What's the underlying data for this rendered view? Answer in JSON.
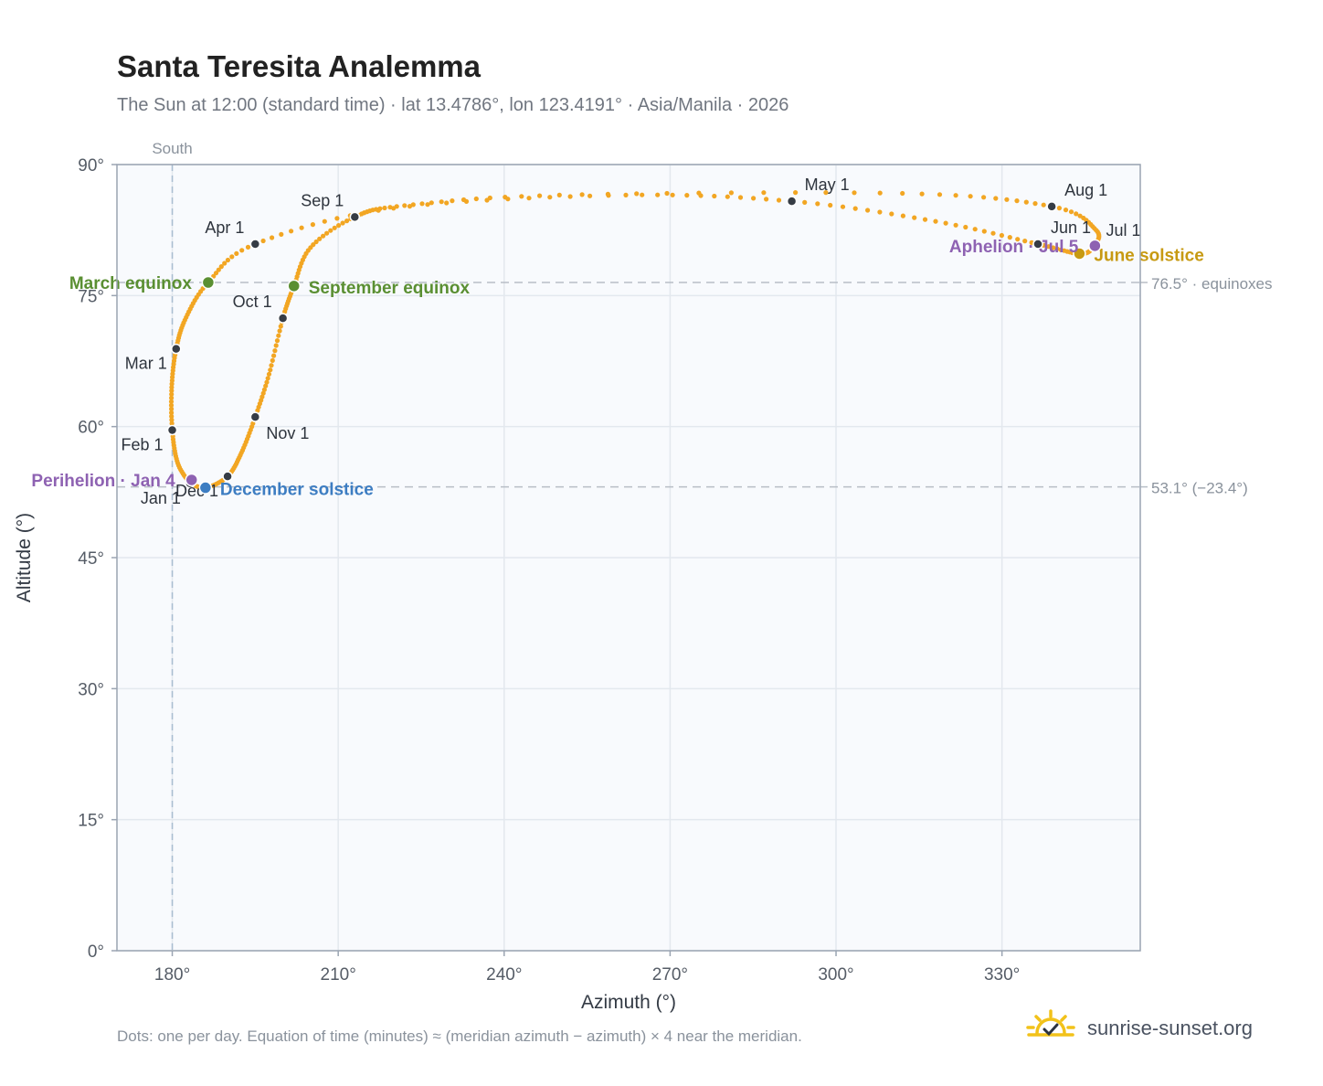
{
  "title": "Santa Teresita Analemma",
  "subtitle": "The Sun at 12:00 (standard time) · lat 13.4786°, lon 123.4191° · Asia/Manila · 2026",
  "footnote": "Dots: one per day. Equation of time (minutes) ≈ (meridian azimuth − azimuth) × 4 near the meridian.",
  "brand": {
    "name": "sunrise-sunset.org",
    "icon": "sun-check-icon"
  },
  "colors": {
    "path": "#f2a623",
    "month_marker": "#363c45",
    "equinox": "#5a8f32",
    "december_solstice": "#3d7dc2",
    "june_solstice": "#c79a12",
    "apsis": "#8e62b2",
    "grid": "#e3e8ee",
    "plot_bg": "#f8fafd",
    "frame": "#9aa4b2"
  },
  "chart_data": {
    "type": "scatter",
    "title": "Santa Teresita Analemma",
    "xlabel": "Azimuth (°)",
    "ylabel": "Altitude (°)",
    "xlim": [
      170,
      355
    ],
    "ylim": [
      0,
      90
    ],
    "x_ticks": [
      180,
      210,
      240,
      270,
      300,
      330
    ],
    "x_tick_labels": [
      "180°",
      "210°",
      "240°",
      "270°",
      "300°",
      "330°"
    ],
    "y_ticks": [
      0,
      15,
      30,
      45,
      60,
      75,
      90
    ],
    "y_tick_labels": [
      "0°",
      "15°",
      "30°",
      "45°",
      "60°",
      "75°",
      "90°"
    ],
    "grid": true,
    "meridian": {
      "azimuth": 180,
      "label": "South"
    },
    "reference_lines": [
      {
        "altitude": 76.5,
        "label": "76.5° · equinoxes"
      },
      {
        "altitude": 53.1,
        "label": "53.1° (−23.4°)"
      }
    ],
    "path_waypoints": [
      {
        "date": "Jan 1",
        "az": 183.2,
        "alt": 53.5
      },
      {
        "date": "Jan 15",
        "az": 181.0,
        "alt": 55.8
      },
      {
        "date": "Feb 1",
        "az": 180.0,
        "alt": 59.6
      },
      {
        "date": "Feb 15",
        "az": 179.9,
        "alt": 64.5
      },
      {
        "date": "Mar 1",
        "az": 180.7,
        "alt": 68.9
      },
      {
        "date": "Mar 10",
        "az": 182.5,
        "alt": 72.5
      },
      {
        "date": "Mar 20",
        "az": 186.5,
        "alt": 76.5
      },
      {
        "date": "Apr 1",
        "az": 195.0,
        "alt": 80.9
      },
      {
        "date": "Apr 15",
        "az": 220.0,
        "alt": 85.0
      },
      {
        "date": "Apr 25",
        "az": 262.0,
        "alt": 86.5
      },
      {
        "date": "May 1",
        "az": 292.0,
        "alt": 85.8
      },
      {
        "date": "May 15",
        "az": 318.0,
        "alt": 83.5
      },
      {
        "date": "Jun 1",
        "az": 336.5,
        "alt": 80.9
      },
      {
        "date": "Jun 21",
        "az": 344.0,
        "alt": 79.8
      },
      {
        "date": "Jul 1",
        "az": 346.5,
        "alt": 80.6
      },
      {
        "date": "Jul 15",
        "az": 347.0,
        "alt": 82.5
      },
      {
        "date": "Aug 1",
        "az": 339.0,
        "alt": 85.2
      },
      {
        "date": "Aug 10",
        "az": 312.0,
        "alt": 86.7
      },
      {
        "date": "Aug 20",
        "az": 250.0,
        "alt": 86.5
      },
      {
        "date": "Aug 28",
        "az": 222.0,
        "alt": 85.3
      },
      {
        "date": "Sep 1",
        "az": 213.0,
        "alt": 84.0
      },
      {
        "date": "Sep 10",
        "az": 205.0,
        "alt": 80.5
      },
      {
        "date": "Sep 22",
        "az": 202.0,
        "alt": 76.1
      },
      {
        "date": "Oct 1",
        "az": 200.0,
        "alt": 72.4
      },
      {
        "date": "Oct 15",
        "az": 197.5,
        "alt": 66.0
      },
      {
        "date": "Nov 1",
        "az": 195.0,
        "alt": 61.1
      },
      {
        "date": "Nov 15",
        "az": 192.5,
        "alt": 57.0
      },
      {
        "date": "Dec 1",
        "az": 190.0,
        "alt": 54.3
      },
      {
        "date": "Dec 21",
        "az": 186.0,
        "alt": 53.0
      },
      {
        "date": "Dec 31",
        "az": 183.3,
        "alt": 53.5
      }
    ],
    "month_markers": [
      {
        "label": "Jan 1",
        "az": 183.2,
        "alt": 53.5,
        "pos": "below-left"
      },
      {
        "label": "Feb 1",
        "az": 180.0,
        "alt": 59.6,
        "pos": "below-left"
      },
      {
        "label": "Mar 1",
        "az": 180.7,
        "alt": 68.9,
        "pos": "below-left"
      },
      {
        "label": "Apr 1",
        "az": 195.0,
        "alt": 80.9,
        "pos": "above-left"
      },
      {
        "label": "May 1",
        "az": 292.0,
        "alt": 85.8,
        "pos": "above-right"
      },
      {
        "label": "Jun 1",
        "az": 336.5,
        "alt": 80.9,
        "pos": "above-right"
      },
      {
        "label": "Jul 1",
        "az": 346.5,
        "alt": 80.6,
        "pos": "above-right"
      },
      {
        "label": "Aug 1",
        "az": 339.0,
        "alt": 85.2,
        "pos": "above-right"
      },
      {
        "label": "Sep 1",
        "az": 213.0,
        "alt": 84.0,
        "pos": "above-left"
      },
      {
        "label": "Oct 1",
        "az": 200.0,
        "alt": 72.4,
        "pos": "above-left"
      },
      {
        "label": "Nov 1",
        "az": 195.0,
        "alt": 61.1,
        "pos": "below-right"
      },
      {
        "label": "Dec 1",
        "az": 190.0,
        "alt": 54.3,
        "pos": "below-left"
      }
    ],
    "events": [
      {
        "label": "March equinox",
        "az": 186.5,
        "alt": 76.5,
        "color": "#5a8f32",
        "pos": "left"
      },
      {
        "label": "September equinox",
        "az": 202.0,
        "alt": 76.1,
        "color": "#5a8f32",
        "pos": "right"
      },
      {
        "label": "June solstice",
        "az": 344.0,
        "alt": 79.8,
        "color": "#c79a12",
        "pos": "right"
      },
      {
        "label": "December solstice",
        "az": 186.0,
        "alt": 53.0,
        "color": "#3d7dc2",
        "pos": "right"
      },
      {
        "label": "Perihelion · Jan 4",
        "az": 183.5,
        "alt": 53.9,
        "color": "#8e62b2",
        "pos": "left"
      },
      {
        "label": "Aphelion · Jul 5",
        "az": 346.8,
        "alt": 80.7,
        "color": "#8e62b2",
        "pos": "left"
      }
    ]
  }
}
